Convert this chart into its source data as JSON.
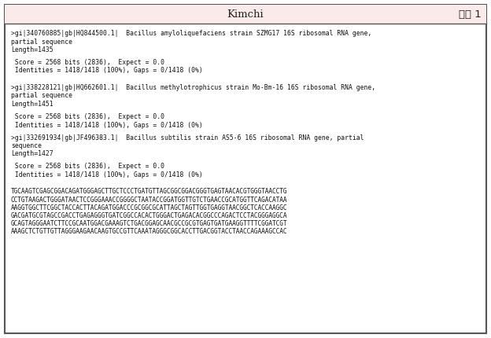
{
  "title_left": "Kimchi",
  "title_right": "부록 1",
  "header_bg": "#faeaea",
  "border_color": "#555555",
  "background_color": "#ffffff",
  "title_fontsize": 9.5,
  "body_fontsize": 5.8,
  "mono_fontsize": 5.6,
  "lines": [
    {
      "text": ">gi|340760885|gb|HQ844500.1|  Bacillus amyloliquefaciens strain SZMG17 16S ribosomal RNA gene,",
      "empty": false,
      "indent": false
    },
    {
      "text": "partial sequence",
      "empty": false,
      "indent": false
    },
    {
      "text": "Length=1435",
      "empty": false,
      "indent": false
    },
    {
      "text": "",
      "empty": true,
      "indent": false
    },
    {
      "text": " Score = 2568 bits (2836),  Expect = 0.0",
      "empty": false,
      "indent": true
    },
    {
      "text": " Identities = 1418/1418 (100%), Gaps = 0/1418 (0%)",
      "empty": false,
      "indent": true
    },
    {
      "text": "",
      "empty": true,
      "indent": false
    },
    {
      "text": "",
      "empty": true,
      "indent": false
    },
    {
      "text": ">gi|338228121|gb|HQ662601.1|  Bacillus methylotrophicus strain Mo-Bm-16 16S ribosomal RNA gene,",
      "empty": false,
      "indent": false
    },
    {
      "text": "partial sequence",
      "empty": false,
      "indent": false
    },
    {
      "text": "Length=1451",
      "empty": false,
      "indent": false
    },
    {
      "text": "",
      "empty": true,
      "indent": false
    },
    {
      "text": " Score = 2568 bits (2836),  Expect = 0.0",
      "empty": false,
      "indent": true
    },
    {
      "text": " Identities = 1418/1418 (100%), Gaps = 0/1418 (0%)",
      "empty": false,
      "indent": true
    },
    {
      "text": "",
      "empty": true,
      "indent": false
    },
    {
      "text": ">gi|332691934|gb|JF496383.1|  Bacillus subtilis strain AS5-6 16S ribosomal RNA gene, partial",
      "empty": false,
      "indent": false
    },
    {
      "text": "sequence",
      "empty": false,
      "indent": false
    },
    {
      "text": "Length=1427",
      "empty": false,
      "indent": false
    },
    {
      "text": "",
      "empty": true,
      "indent": false
    },
    {
      "text": " Score = 2568 bits (2836),  Expect = 0.0",
      "empty": false,
      "indent": true
    },
    {
      "text": " Identities = 1418/1418 (100%), Gaps = 0/1418 (0%)",
      "empty": false,
      "indent": true
    },
    {
      "text": "",
      "empty": true,
      "indent": false
    },
    {
      "text": "",
      "empty": true,
      "indent": false
    },
    {
      "text": "TGCAAGTCGAGCGGACAGATGGGAGCTTGCTCCCTGATGTTAGCGGCGGACGGGTGAGTAACACGTGGGTAACCTG",
      "empty": false,
      "indent": false,
      "mono": true
    },
    {
      "text": "CCTGTAAGACTGGGATAACTCCGGGAAACCGGGGCTAATACCGGATGGTTGTCTGAACCGCATGGTTCAGACATAA",
      "empty": false,
      "indent": false,
      "mono": true
    },
    {
      "text": "AAGGTGGCTTCGGCTACCACTTACAGATGGACCCGCGGCGCATTAGCTAGTTGGTGAGGTAACGGCTCACCAAGGC",
      "empty": false,
      "indent": false,
      "mono": true
    },
    {
      "text": "GACGATGCGTAGCCGACCTGAGAGGGTGATCGGCCACACTGGGACTGAGACACGGCCCAGACTCCTACGGGAGGCA",
      "empty": false,
      "indent": false,
      "mono": true
    },
    {
      "text": "GCAGTAGGGAATCTTCCGCAATGGACGAAAGTCTGACGGAGCAACGCCGCGTGAGTGATGAAGGTTTTCGGATCGT",
      "empty": false,
      "indent": false,
      "mono": true
    },
    {
      "text": "AAAGCTCTGTTGTTAGGGAAGAACAAGTGCCGTTCAAATAGGGCGGCACCTTGACGGTACCTAACCAGAAAGCCAC",
      "empty": false,
      "indent": false,
      "mono": true
    }
  ]
}
